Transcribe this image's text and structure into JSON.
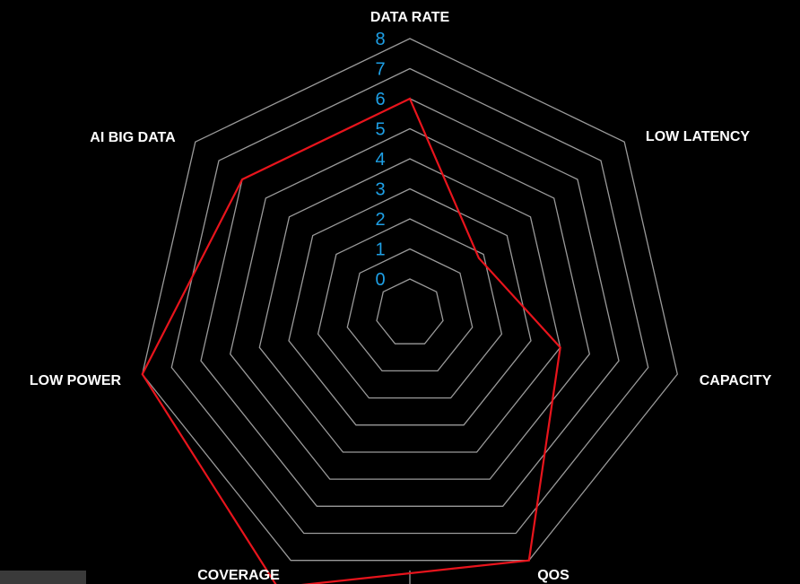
{
  "chart_data": {
    "type": "radar",
    "categories": [
      "DATA RATE",
      "LOW LATENCY",
      "CAPACITY",
      "QOS",
      "COVERAGE",
      "LOW POWER",
      "AI BIG DATA"
    ],
    "series": [
      {
        "values": [
          6,
          1.8,
          4,
          8,
          9,
          8,
          6
        ]
      }
    ],
    "rlim": [
      0,
      8
    ],
    "ticks": [
      "0",
      "1",
      "2",
      "3",
      "4",
      "5",
      "6",
      "7",
      "8"
    ],
    "colors": {
      "background": "#000000",
      "grid": "#9a9a9a",
      "series": "#e8141c",
      "tick_labels": "#1ea0e6",
      "axis_labels": "#ffffff"
    },
    "grid": true,
    "legend": "none"
  }
}
